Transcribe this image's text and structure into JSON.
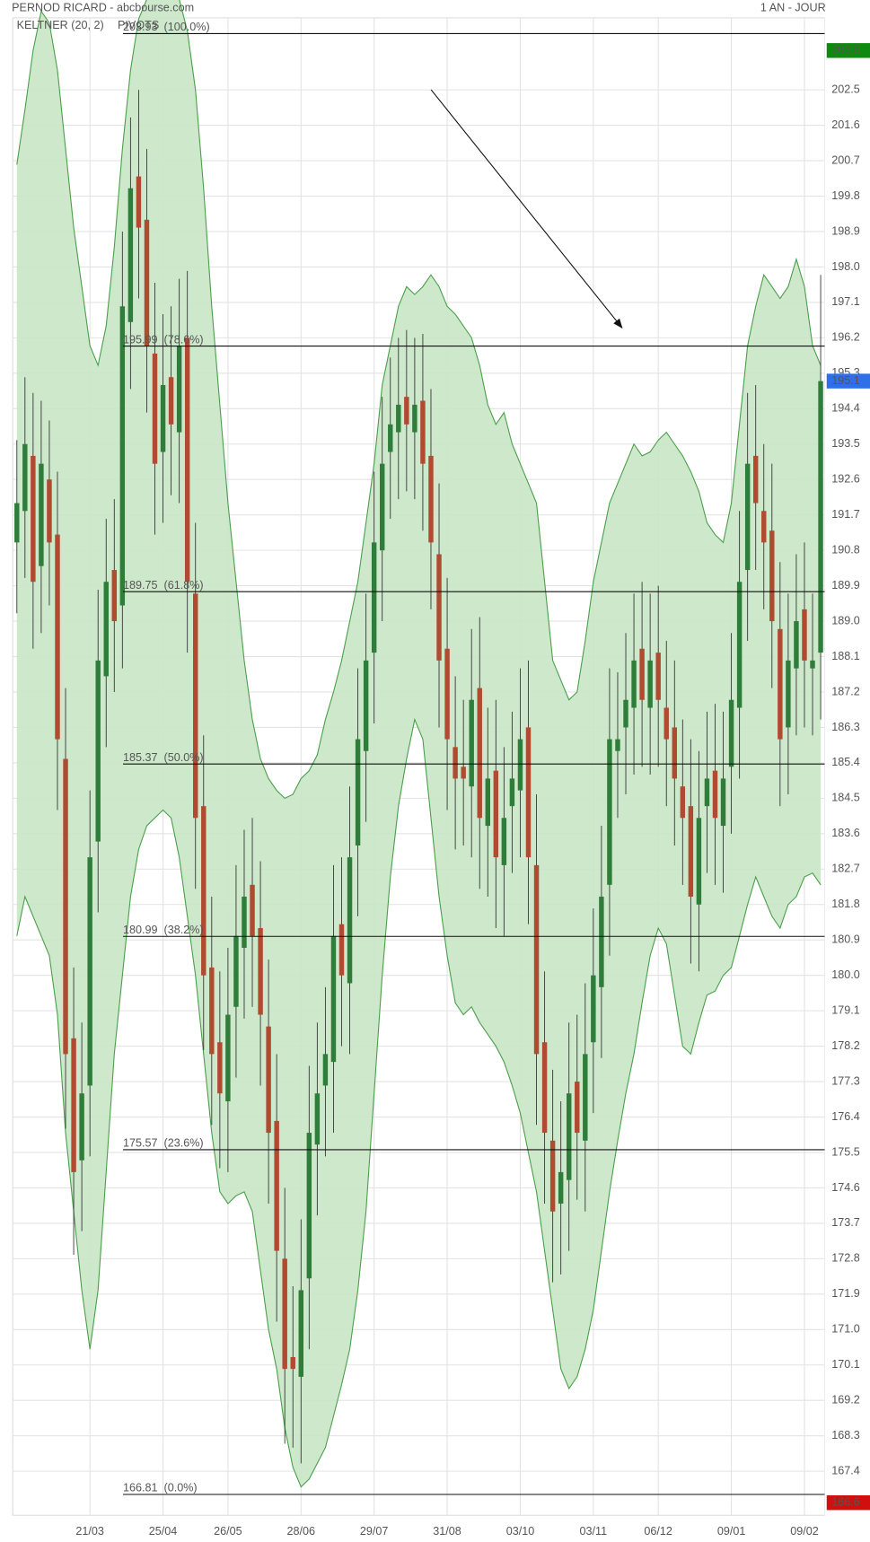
{
  "chart_data": {
    "type": "candlestick",
    "title": "PERNOD RICARD - abcbourse.com",
    "period": "1 AN - JOUR",
    "indicators": [
      {
        "name": "KELTNER (20, 2)",
        "color": "#3d9a3d"
      },
      {
        "name": "PIVOTS",
        "color": "#666666"
      }
    ],
    "up_color": "#2e7d3a",
    "down_color": "#b04a30",
    "band_fill": "#c8e6c4",
    "band_stroke": "#4a9f4a",
    "grid": true,
    "ylim": [
      166.28,
      204.33
    ],
    "yticks": [
      202.5,
      201.6,
      200.7,
      199.8,
      198.9,
      {
        "value": 198,
        "label": "198.0"
      },
      197.1,
      196.2,
      195.3,
      194.4,
      193.5,
      192.6,
      191.7,
      190.8,
      189.9,
      {
        "value": 189,
        "label": "189.0"
      },
      188.1,
      187.2,
      186.3,
      185.4,
      184.5,
      183.6,
      182.7,
      181.8,
      180.9,
      {
        "value": 180,
        "label": "180.0"
      },
      179.1,
      178.2,
      177.3,
      176.4,
      175.5,
      174.6,
      173.7,
      172.8,
      171.9,
      {
        "value": 171,
        "label": "171.0"
      },
      170.1,
      169.2,
      168.3,
      167.4
    ],
    "categories": [
      null,
      null,
      null,
      null,
      null,
      null,
      null,
      null,
      null,
      "21/03",
      null,
      null,
      null,
      null,
      null,
      null,
      null,
      null,
      "25/04",
      null,
      null,
      null,
      null,
      null,
      null,
      null,
      "26/05",
      null,
      null,
      null,
      null,
      null,
      null,
      null,
      null,
      "28/06",
      null,
      null,
      null,
      null,
      null,
      null,
      null,
      null,
      "29/07",
      null,
      null,
      null,
      null,
      null,
      null,
      null,
      null,
      "31/08",
      null,
      null,
      null,
      null,
      null,
      null,
      null,
      null,
      "03/10",
      null,
      null,
      null,
      null,
      null,
      null,
      null,
      null,
      "03/11",
      null,
      null,
      null,
      null,
      null,
      null,
      null,
      "06/12",
      null,
      null,
      null,
      null,
      null,
      null,
      null,
      null,
      "09/01",
      null,
      null,
      null,
      null,
      null,
      null,
      null,
      null,
      "09/02",
      null,
      null
    ],
    "open": [
      191,
      191.8,
      193.2,
      190.4,
      192.6,
      191.2,
      185.5,
      178.4,
      175.3,
      177.2,
      183.4,
      187.6,
      190.3,
      189.4,
      196.6,
      200.3,
      199.2,
      195.8,
      193.3,
      195.2,
      193.8,
      196.2,
      189.7,
      184.3,
      180.2,
      178.3,
      176.8,
      179.2,
      180.7,
      182.3,
      181.2,
      178.7,
      176.3,
      172.8,
      170.3,
      169.8,
      172.3,
      175.7,
      177.2,
      177.8,
      181.3,
      179.8,
      183.3,
      185.7,
      188.2,
      190.8,
      193.3,
      193.8,
      194.7,
      193.8,
      194.6,
      193.2,
      190.7,
      188.3,
      185.8,
      185.3,
      184.8,
      187.3,
      183.8,
      185.2,
      182.8,
      184.3,
      184.7,
      186.3,
      182.8,
      178.3,
      175.8,
      174.2,
      174.8,
      177.3,
      175.8,
      178.3,
      179.7,
      182.3,
      185.7,
      186.3,
      186.8,
      188.3,
      186.8,
      188.2,
      186.8,
      186.3,
      184.8,
      184.3,
      181.8,
      184.3,
      185.2,
      183.8,
      185.3,
      186.8,
      190.3,
      193.2,
      191.8,
      191.3,
      188.8,
      186.3,
      187.8,
      189.3,
      187.8,
      188.2
    ],
    "high": [
      193.6,
      195.2,
      194.8,
      194.6,
      194.1,
      192.8,
      187.3,
      180.2,
      178.8,
      184.7,
      189.8,
      191.6,
      192.1,
      198.9,
      201.8,
      202.5,
      201,
      197.6,
      196.8,
      197,
      197.7,
      197.9,
      191.5,
      186.1,
      182,
      180.1,
      180.7,
      182.8,
      183.7,
      184,
      182.9,
      180.4,
      178,
      174.6,
      172.1,
      173.8,
      177.7,
      178.8,
      179.7,
      182.8,
      183,
      184.8,
      187.8,
      189.7,
      192.8,
      194.7,
      195.7,
      196.2,
      196.4,
      196.2,
      196.3,
      194.9,
      192.5,
      190.1,
      187.6,
      187,
      188.8,
      189.1,
      186.8,
      187,
      185.8,
      186.7,
      187.8,
      188,
      184.6,
      180.1,
      177.6,
      176.8,
      178.8,
      179,
      179.8,
      181.7,
      183.8,
      187.8,
      187.7,
      188.7,
      189.7,
      190,
      189.7,
      189.9,
      188.5,
      188,
      186.5,
      186,
      185.7,
      186.7,
      186.9,
      186.7,
      188.7,
      191.8,
      194.8,
      195,
      193.5,
      193,
      190.5,
      189.7,
      190.7,
      191,
      189.7,
      197.8
    ],
    "low": [
      189.2,
      190.1,
      188.3,
      188.7,
      189.4,
      184.2,
      176.1,
      172.9,
      173.5,
      175.4,
      181.6,
      185.8,
      187.2,
      187.8,
      194.9,
      197.2,
      194.3,
      191.2,
      191.5,
      192.2,
      192,
      188.2,
      182.2,
      178.1,
      176.2,
      175.1,
      175,
      177.4,
      178.9,
      179.2,
      177.2,
      174.2,
      171.2,
      168.1,
      168,
      167.6,
      170.5,
      173.9,
      175.4,
      176,
      178.2,
      178,
      181.5,
      183.9,
      186.4,
      189,
      191.6,
      192.1,
      192.3,
      192.1,
      191.3,
      189.3,
      186.3,
      184.2,
      183.2,
      183.3,
      183,
      182.2,
      182,
      181.2,
      181,
      182.6,
      183,
      181.3,
      176.2,
      174.2,
      172.2,
      172.4,
      173,
      174.3,
      174,
      176.5,
      177.9,
      180.5,
      184,
      184.6,
      185.1,
      185.3,
      185.1,
      185.3,
      184.3,
      183.3,
      182.3,
      180.3,
      180.1,
      182.6,
      182.3,
      182.1,
      183.6,
      185,
      188.5,
      190.3,
      189.3,
      187.3,
      184.3,
      184.6,
      186.1,
      186.3,
      186.1,
      186.5
    ],
    "close": [
      192,
      193.5,
      190,
      193,
      191,
      186,
      178,
      175,
      177,
      183,
      188,
      190,
      189,
      197,
      200,
      199,
      196,
      193,
      195,
      194,
      196,
      190,
      184,
      180,
      178,
      177,
      179,
      181,
      182,
      181,
      179,
      176,
      173,
      170,
      170,
      172,
      176,
      177,
      178,
      181,
      180,
      183,
      186,
      188,
      191,
      193,
      194,
      194.5,
      194,
      194.5,
      193,
      191,
      188,
      186,
      185,
      185,
      187,
      184,
      185,
      183,
      184,
      185,
      186,
      183,
      178,
      176,
      174,
      175,
      177,
      176,
      178,
      180,
      182,
      186,
      186,
      187,
      188,
      187,
      188,
      187,
      186,
      185,
      184,
      182,
      184,
      185,
      184,
      185,
      187,
      190,
      193,
      192,
      191,
      189,
      186,
      188,
      189,
      188,
      188,
      195.1
    ],
    "keltner": {
      "upper": [
        200.6,
        202,
        203.5,
        204.5,
        204.2,
        203,
        201,
        199,
        197.5,
        196,
        195.5,
        196.5,
        198.5,
        201,
        203,
        204.3,
        204.8,
        205,
        205,
        205,
        204.8,
        204,
        202.5,
        200,
        197,
        194.5,
        192,
        190,
        188,
        186.5,
        185.5,
        185,
        184.7,
        184.5,
        184.6,
        185,
        185.2,
        185.6,
        186.5,
        187.2,
        188,
        189,
        190,
        191.5,
        193,
        195,
        196,
        197,
        197.5,
        197.3,
        197.5,
        197.8,
        197.5,
        197,
        196.8,
        196.5,
        196.2,
        195.5,
        194.5,
        194,
        194.3,
        193.5,
        193,
        192.5,
        192,
        190,
        188,
        187.5,
        187,
        187.2,
        188.5,
        190,
        191,
        192,
        192.5,
        193,
        193.5,
        193.2,
        193.3,
        193.6,
        193.8,
        193.5,
        193.2,
        192.8,
        192.3,
        191.5,
        191.2,
        191,
        192,
        194,
        196,
        197,
        197.8,
        197.5,
        197.2,
        197.5,
        198.2,
        197.5,
        196,
        195.5
      ],
      "lower": [
        181,
        182,
        181.5,
        181,
        180.5,
        179,
        176,
        174,
        172,
        170.5,
        172,
        175,
        178,
        180,
        182,
        183.2,
        183.8,
        184,
        184.2,
        184,
        183,
        181.5,
        180,
        178,
        176,
        174.5,
        174.2,
        174.4,
        174.5,
        174,
        172.5,
        171,
        170,
        168.5,
        167.5,
        167,
        167.2,
        167.6,
        168,
        168.8,
        169.6,
        170.5,
        172,
        174,
        177,
        180,
        182.5,
        184.3,
        185.5,
        186.5,
        186,
        184,
        182,
        180.5,
        179.3,
        179,
        179.2,
        178.8,
        178.5,
        178.2,
        177.8,
        177.2,
        176.5,
        175.5,
        174.5,
        173,
        171.5,
        170,
        169.5,
        169.8,
        170.5,
        171.5,
        173,
        174.5,
        175.8,
        177,
        178,
        179.3,
        180.5,
        181.2,
        180.8,
        179.5,
        178.2,
        178,
        178.8,
        179.5,
        179.6,
        180,
        180.2,
        181,
        181.8,
        182.5,
        182,
        181.5,
        181.2,
        181.8,
        182,
        182.5,
        182.6,
        182.3
      ]
    },
    "levels": [
      {
        "value": 203.93,
        "label": "203.93  (100.0%)"
      },
      {
        "value": 195.99,
        "label": "195.99  (78.6%)"
      },
      {
        "value": 189.75,
        "label": "189.75  (61.8%)"
      },
      {
        "value": 185.37,
        "label": "185.37  (50.0%)"
      },
      {
        "value": 180.99,
        "label": "180.99  (38.2%)"
      },
      {
        "value": 175.57,
        "label": "175.57  (23.6%)"
      },
      {
        "value": 166.81,
        "label": "166.81  (0.0%)"
      }
    ],
    "price_tags": [
      {
        "value": 203.5,
        "color": "#0f8a0f"
      },
      {
        "value": 195.1,
        "color": "#2f6fe8"
      },
      {
        "value": 166.6,
        "color": "#d01010"
      }
    ]
  }
}
